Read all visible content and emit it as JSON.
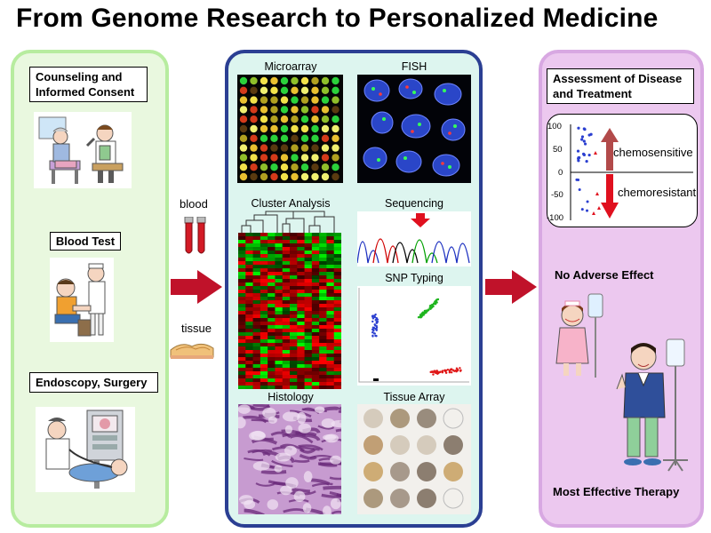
{
  "title": "From Genome Research to Personalized Medicine",
  "left": {
    "counseling": "Counseling and Informed Consent",
    "blood_test": "Blood Test",
    "endoscopy": "Endoscopy, Surgery"
  },
  "transfer": {
    "blood": "blood",
    "tissue": "tissue"
  },
  "middle": {
    "microarray": "Microarray",
    "fish": "FISH",
    "cluster": "Cluster Analysis",
    "sequencing": "Sequencing",
    "snp": "SNP Typing",
    "histology": "Histology",
    "tissue_array": "Tissue Array"
  },
  "right": {
    "assessment": "Assessment of Disease and Treatment",
    "chemosensitive": "chemosensitive",
    "chemoresistant": "chemoresistant",
    "ticks": [
      "100",
      "50",
      "0",
      "-50",
      "-100"
    ],
    "no_adverse": "No Adverse Effect",
    "most_effective": "Most Effective Therapy"
  },
  "colors": {
    "left_panel": "#e9f8df",
    "mid_panel": "#ddf5ef",
    "right_panel": "#ecc8ef",
    "arrow": "#c0122a"
  }
}
